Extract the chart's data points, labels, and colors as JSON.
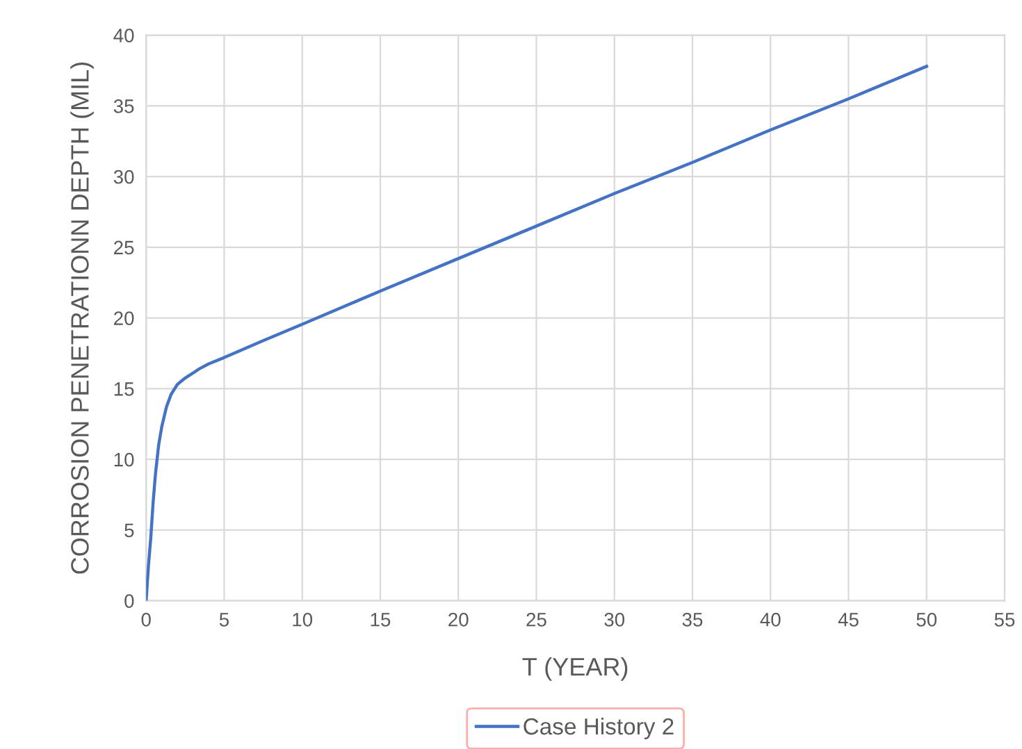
{
  "chart_data": {
    "type": "line",
    "xlabel": "T (YEAR)",
    "ylabel": "CORROSION PENETRATIONN DEPTH (MIL)",
    "series": [
      {
        "name": "Case History 2",
        "color": "#4472c4",
        "x": [
          0,
          0.15,
          0.3,
          0.45,
          0.6,
          0.8,
          1.0,
          1.3,
          1.6,
          2.0,
          2.5,
          3.0,
          3.4,
          4.0,
          5,
          7.5,
          10.1,
          15.1,
          20,
          25,
          30,
          35,
          40,
          45,
          50
        ],
        "values": [
          0,
          2.5,
          4.5,
          7,
          9,
          11,
          12.3,
          13.7,
          14.6,
          15.3,
          15.75,
          16.1,
          16.4,
          16.75,
          17.2,
          18.4,
          19.6,
          21.95,
          24.2,
          26.5,
          28.8,
          31.0,
          33.3,
          35.5,
          37.8
        ]
      }
    ],
    "xlim": [
      0,
      55
    ],
    "xticks": [
      0,
      5,
      10,
      15,
      20,
      25,
      30,
      35,
      40,
      45,
      50,
      55
    ],
    "ylim": [
      0,
      40
    ],
    "yticks": [
      0,
      5,
      10,
      15,
      20,
      25,
      30,
      35,
      40
    ],
    "grid": true,
    "legend": "bottom",
    "marker": "none",
    "line_style": "solid"
  }
}
